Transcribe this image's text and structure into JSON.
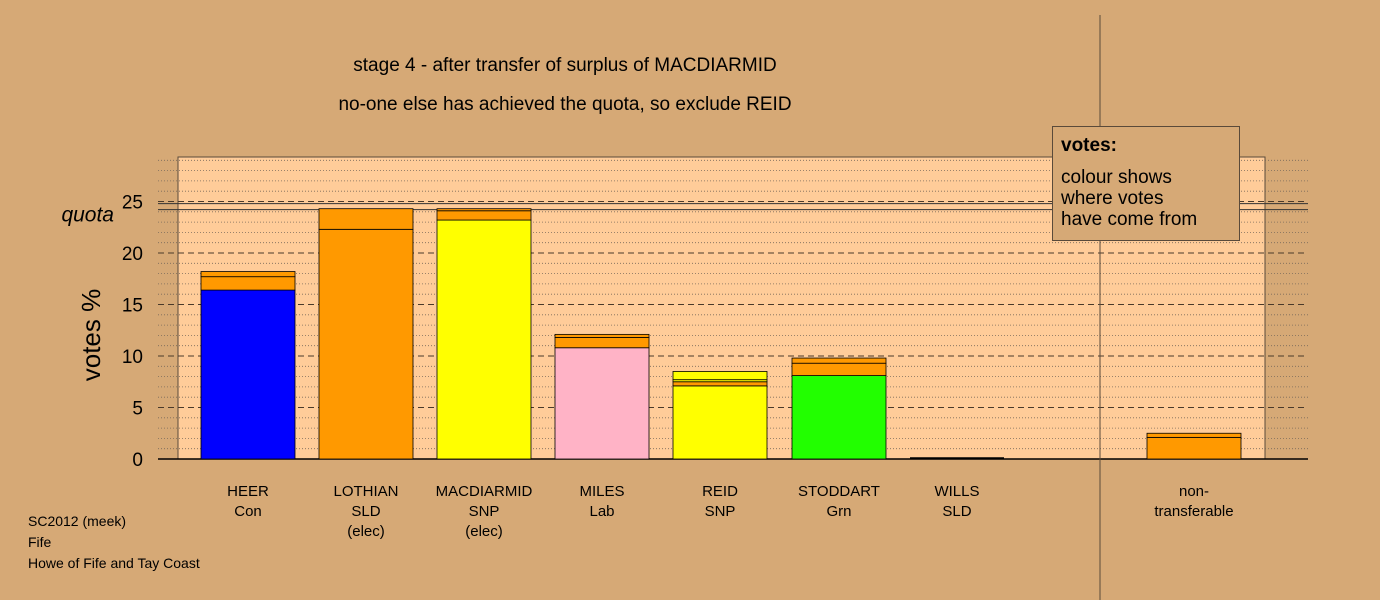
{
  "chart_data": {
    "type": "bar",
    "title": "stage 4 - after transfer of surplus of MACDIARMID",
    "subtitle": "no-one else has achieved the quota, so exclude REID",
    "ylabel": "votes %",
    "ylim": [
      0,
      29
    ],
    "yticks": [
      0,
      5,
      10,
      15,
      20,
      25
    ],
    "quota": 24.5,
    "quota_label": "quota",
    "categories": [
      {
        "name": "HEER",
        "party": "Con",
        "status": ""
      },
      {
        "name": "LOTHIAN",
        "party": "SLD",
        "status": "(elec)"
      },
      {
        "name": "MACDIARMID",
        "party": "SNP",
        "status": "(elec)"
      },
      {
        "name": "MILES",
        "party": "Lab",
        "status": ""
      },
      {
        "name": "REID",
        "party": "SNP",
        "status": ""
      },
      {
        "name": "STODDART",
        "party": "Grn",
        "status": ""
      },
      {
        "name": "WILLS",
        "party": "SLD",
        "status": ""
      },
      {
        "name": "non-",
        "party": "transferable",
        "status": ""
      }
    ],
    "stacks": [
      [
        {
          "value": 16.4,
          "color": "#0000ff"
        },
        {
          "value": 1.3,
          "color": "#ff9900"
        },
        {
          "value": 0.5,
          "color": "#ff9900"
        }
      ],
      [
        {
          "value": 22.3,
          "color": "#ff9900"
        },
        {
          "value": 2.0,
          "color": "#ff9900"
        }
      ],
      [
        {
          "value": 23.2,
          "color": "#ffff00"
        },
        {
          "value": 0.9,
          "color": "#ff9900"
        },
        {
          "value": 0.2,
          "color": "#ff9900"
        }
      ],
      [
        {
          "value": 10.8,
          "color": "#ffb3c6"
        },
        {
          "value": 1.0,
          "color": "#ff9900"
        },
        {
          "value": 0.3,
          "color": "#ff9900"
        }
      ],
      [
        {
          "value": 7.1,
          "color": "#ffff00"
        },
        {
          "value": 0.4,
          "color": "#ff9900"
        },
        {
          "value": 0.2,
          "color": "#ffff00"
        },
        {
          "value": 0.8,
          "color": "#ffff00"
        }
      ],
      [
        {
          "value": 8.1,
          "color": "#22ff00"
        },
        {
          "value": 1.2,
          "color": "#ff9900"
        },
        {
          "value": 0.5,
          "color": "#ff9900"
        }
      ],
      [],
      [
        {
          "value": 2.1,
          "color": "#ff9900"
        },
        {
          "value": 0.4,
          "color": "#ff9900"
        }
      ]
    ],
    "grid": true,
    "legend": {
      "title": "votes:",
      "lines": [
        "colour shows",
        "where votes",
        "have come from"
      ]
    }
  },
  "footer": {
    "line1": "SC2012 (meek)",
    "line2": "Fife",
    "line3": "Howe of Fife and Tay Coast"
  }
}
